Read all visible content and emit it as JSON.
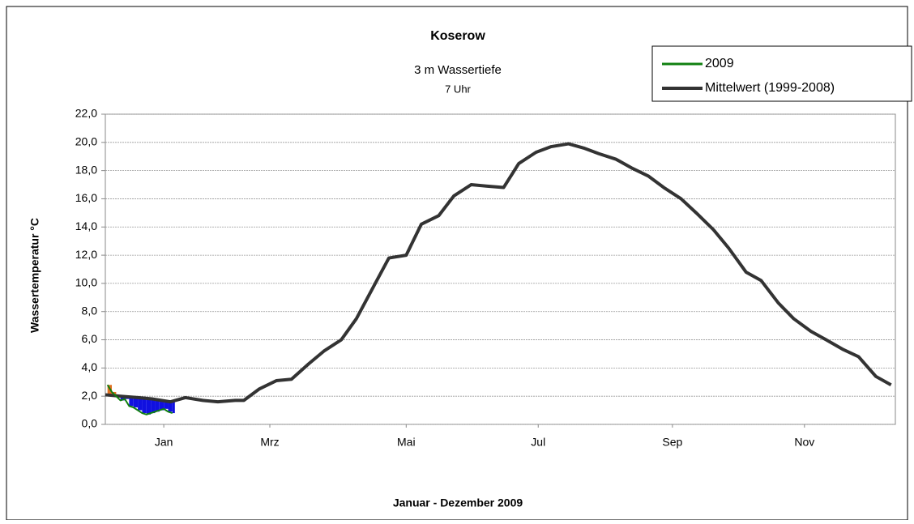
{
  "chart_data": {
    "type": "line",
    "title": "Koserow",
    "subtitle": "3 m Wassertiefe",
    "subtitle2": "7 Uhr",
    "y_label": "Wassertemperatur °C",
    "x_label": "Januar - Dezember 2009",
    "xlim": [
      0,
      365
    ],
    "xticks": [
      {
        "value": 27,
        "label": "Jan"
      },
      {
        "value": 76,
        "label": "Mrz"
      },
      {
        "value": 139,
        "label": "Mai"
      },
      {
        "value": 200,
        "label": "Jul"
      },
      {
        "value": 262,
        "label": "Sep"
      },
      {
        "value": 323,
        "label": "Nov"
      }
    ],
    "ylim": [
      0,
      22
    ],
    "yticks": [
      {
        "value": 0,
        "label": "0,0"
      },
      {
        "value": 2,
        "label": "2,0"
      },
      {
        "value": 4,
        "label": "4,0"
      },
      {
        "value": 6,
        "label": "6,0"
      },
      {
        "value": 8,
        "label": "8,0"
      },
      {
        "value": 10,
        "label": "10,0"
      },
      {
        "value": 12,
        "label": "12,0"
      },
      {
        "value": 14,
        "label": "14,0"
      },
      {
        "value": 16,
        "label": "16,0"
      },
      {
        "value": 18,
        "label": "18,0"
      },
      {
        "value": 20,
        "label": "20,0"
      },
      {
        "value": 22,
        "label": "22,0"
      }
    ],
    "grid": true,
    "legend": "upper right",
    "below_color": "#1010e0",
    "above_color": "#e07020",
    "series": [
      {
        "name": "Mittelwert (1999-2008)",
        "color": "#333333",
        "x": [
          0,
          7,
          15,
          22,
          30,
          37,
          45,
          52,
          60,
          64,
          71,
          79,
          86,
          94,
          101,
          109,
          116,
          124,
          131,
          139,
          146,
          154,
          161,
          169,
          176,
          184,
          191,
          199,
          206,
          214,
          221,
          228,
          236,
          243,
          251,
          258,
          266,
          273,
          281,
          288,
          296,
          303,
          311,
          318,
          326,
          333,
          341,
          348,
          356,
          363
        ],
        "values": [
          2.1,
          2.0,
          1.9,
          1.8,
          1.6,
          1.9,
          1.7,
          1.6,
          1.7,
          1.7,
          2.5,
          3.1,
          3.2,
          4.3,
          5.2,
          6.0,
          7.5,
          9.8,
          11.8,
          12.0,
          14.2,
          14.8,
          16.2,
          17.0,
          16.9,
          16.8,
          18.5,
          19.3,
          19.7,
          19.9,
          19.6,
          19.2,
          18.8,
          18.2,
          17.6,
          16.8,
          16.0,
          15.0,
          13.8,
          12.5,
          10.8,
          10.2,
          8.6,
          7.5,
          6.6,
          6.0,
          5.3,
          4.8,
          3.4,
          2.8
        ]
      },
      {
        "name": "2009",
        "color": "#108010",
        "x": [
          1,
          3,
          5,
          7,
          9,
          11,
          13,
          15,
          17,
          19,
          21,
          23,
          25,
          27,
          29,
          31
        ],
        "values": [
          2.8,
          2.3,
          2.0,
          1.7,
          1.8,
          1.3,
          1.2,
          1.0,
          0.8,
          0.7,
          0.8,
          0.9,
          1.0,
          1.1,
          0.9,
          0.8
        ]
      }
    ]
  }
}
